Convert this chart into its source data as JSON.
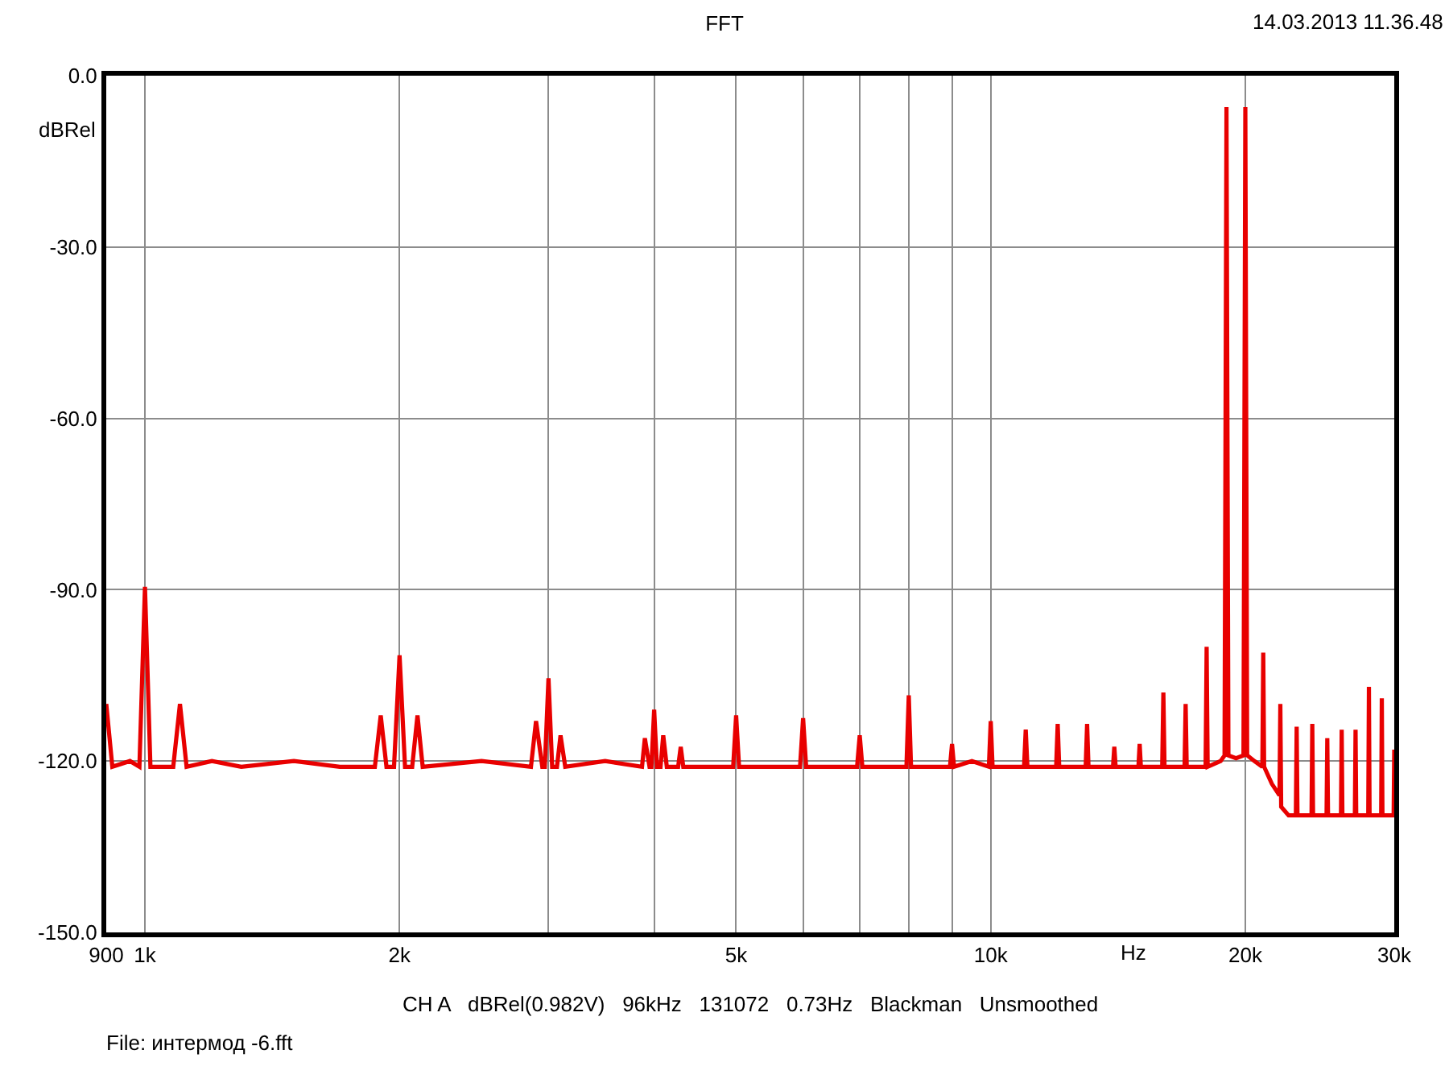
{
  "chart_data": {
    "type": "line",
    "title": "FFT",
    "xlabel": "Hz",
    "ylabel": "dBRel",
    "annotations": [
      "14.03.2013 11.36.48",
      "CH A   dBRel(0.982V)   96kHz   131072   0.73Hz   Blackman   Unsmoothed",
      "File: интермод -6.fft"
    ],
    "log": "x",
    "grid": true,
    "marker": "none",
    "line_style": "solid",
    "xlim": [
      900,
      30000
    ],
    "ylim": [
      -150,
      0
    ],
    "xticks": [
      {
        "value": 900,
        "label": "900"
      },
      {
        "value": 1000,
        "label": "1k"
      },
      {
        "value": 2000,
        "label": "2k"
      },
      {
        "value": 3000,
        "label": null
      },
      {
        "value": 4000,
        "label": null
      },
      {
        "value": 5000,
        "label": "5k"
      },
      {
        "value": 6000,
        "label": null
      },
      {
        "value": 7000,
        "label": null
      },
      {
        "value": 8000,
        "label": null
      },
      {
        "value": 9000,
        "label": null
      },
      {
        "value": 10000,
        "label": "10k"
      },
      {
        "value": 20000,
        "label": "20k"
      },
      {
        "value": 30000,
        "label": "30k"
      }
    ],
    "yticks": [
      {
        "value": 0,
        "label": "0.0"
      },
      {
        "value": -30,
        "label": "-30.0"
      },
      {
        "value": -60,
        "label": "-60.0"
      },
      {
        "value": -90,
        "label": "-90.0"
      },
      {
        "value": -120,
        "label": "-120.0"
      },
      {
        "value": -150,
        "label": "-150.0"
      }
    ],
    "series": [
      {
        "color": "#e80000",
        "x": [
          900,
          915,
          960,
          985,
          1000,
          1015,
          1080,
          1100,
          1120,
          1200,
          1300,
          1500,
          1700,
          1870,
          1900,
          1930,
          1970,
          2000,
          2030,
          2070,
          2100,
          2130,
          2500,
          2860,
          2900,
          2950,
          2970,
          3000,
          3030,
          3070,
          3100,
          3140,
          3500,
          3870,
          3900,
          3950,
          3970,
          4000,
          4030,
          4070,
          4100,
          4140,
          4270,
          4300,
          4330,
          4700,
          4960,
          5000,
          5040,
          5500,
          5950,
          6000,
          6050,
          6500,
          6950,
          7000,
          7050,
          7500,
          7950,
          8000,
          8050,
          8500,
          8950,
          9000,
          9050,
          9500,
          9950,
          10000,
          10050,
          10950,
          11000,
          11050,
          11950,
          12000,
          12050,
          12950,
          13000,
          13050,
          13950,
          14000,
          14050,
          14950,
          15000,
          15050,
          15950,
          16000,
          16050,
          16950,
          17000,
          17050,
          17950,
          18000,
          18050,
          18700,
          18900,
          19000,
          19100,
          19500,
          19900,
          20000,
          20100,
          20500,
          20950,
          21000,
          21050,
          21500,
          21950,
          22000,
          22050,
          22500,
          22950,
          23000,
          23050,
          23950,
          24000,
          24050,
          24950,
          25000,
          25050,
          25950,
          26000,
          26050,
          26950,
          27000,
          27050,
          27950,
          28000,
          28050,
          28950,
          29000,
          29050,
          29950,
          30000
        ],
        "values": [
          -110,
          -121,
          -120,
          -121,
          -89.5,
          -121,
          -121,
          -110,
          -121,
          -120,
          -121,
          -120,
          -121,
          -121,
          -112,
          -121,
          -121,
          -101.5,
          -121,
          -121,
          -112,
          -121,
          -120,
          -121,
          -113,
          -121,
          -121,
          -105.5,
          -121,
          -121,
          -115.5,
          -121,
          -120,
          -121,
          -116,
          -121,
          -121,
          -111,
          -121,
          -121,
          -115.5,
          -121,
          -121,
          -117.5,
          -121,
          -121,
          -121,
          -112,
          -121,
          -121,
          -121,
          -112.5,
          -121,
          -121,
          -121,
          -115.5,
          -121,
          -121,
          -121,
          -108.5,
          -121,
          -121,
          -121,
          -117,
          -121,
          -120,
          -121,
          -113,
          -121,
          -121,
          -114.5,
          -121,
          -121,
          -113.5,
          -121,
          -121,
          -113.5,
          -121,
          -121,
          -117.5,
          -121,
          -121,
          -117,
          -121,
          -121,
          -108,
          -121,
          -121,
          -110,
          -121,
          -121,
          -100,
          -121,
          -120,
          -119,
          -5.5,
          -119,
          -119.5,
          -119,
          -5.5,
          -119,
          -120,
          -121,
          -101,
          -121,
          -124,
          -126,
          -110,
          -128,
          -129.5,
          -129.5,
          -114,
          -129.5,
          -129.5,
          -113.5,
          -129.5,
          -129.5,
          -116,
          -129.5,
          -129.5,
          -114.5,
          -129.5,
          -129.5,
          -114.5,
          -129.5,
          -129.5,
          -107,
          -129.5,
          -129.5,
          -109,
          -129.5,
          -129.5,
          -118
        ]
      }
    ]
  }
}
